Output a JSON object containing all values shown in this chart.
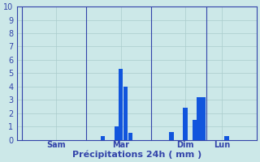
{
  "xlabel": "Précipitations 24h ( mm )",
  "ylim": [
    0,
    10
  ],
  "yticks": [
    0,
    1,
    2,
    3,
    4,
    5,
    6,
    7,
    8,
    9,
    10
  ],
  "background_color": "#cce8e8",
  "grid_color": "#aacccc",
  "bar_color": "#1155dd",
  "axis_color": "#3344aa",
  "text_color": "#3344aa",
  "day_labels": [
    "Sam",
    "Mar",
    "Dim",
    "Lun"
  ],
  "day_positions": [
    8,
    22,
    36,
    44
  ],
  "num_bars": 52,
  "xlim": [
    -0.5,
    51.5
  ],
  "bars": [
    0.0,
    0.0,
    0.0,
    0.0,
    0.0,
    0.0,
    0.0,
    0.0,
    0.0,
    0.0,
    0.0,
    0.0,
    0.0,
    0.0,
    0.0,
    0.0,
    0.0,
    0.0,
    0.3,
    0.0,
    0.0,
    1.0,
    5.3,
    4.0,
    0.5,
    0.0,
    0.0,
    0.0,
    0.0,
    0.0,
    0.0,
    0.0,
    0.0,
    0.6,
    0.0,
    0.0,
    2.4,
    0.0,
    1.5,
    3.2,
    3.2,
    0.0,
    0.0,
    0.0,
    0.0,
    0.25,
    0.0,
    0.0,
    0.0,
    0.0,
    0.0,
    0.0
  ],
  "vline_positions": [
    0.5,
    14.5,
    28.5,
    40.5
  ],
  "xlabel_fontsize": 8,
  "tick_fontsize": 7
}
